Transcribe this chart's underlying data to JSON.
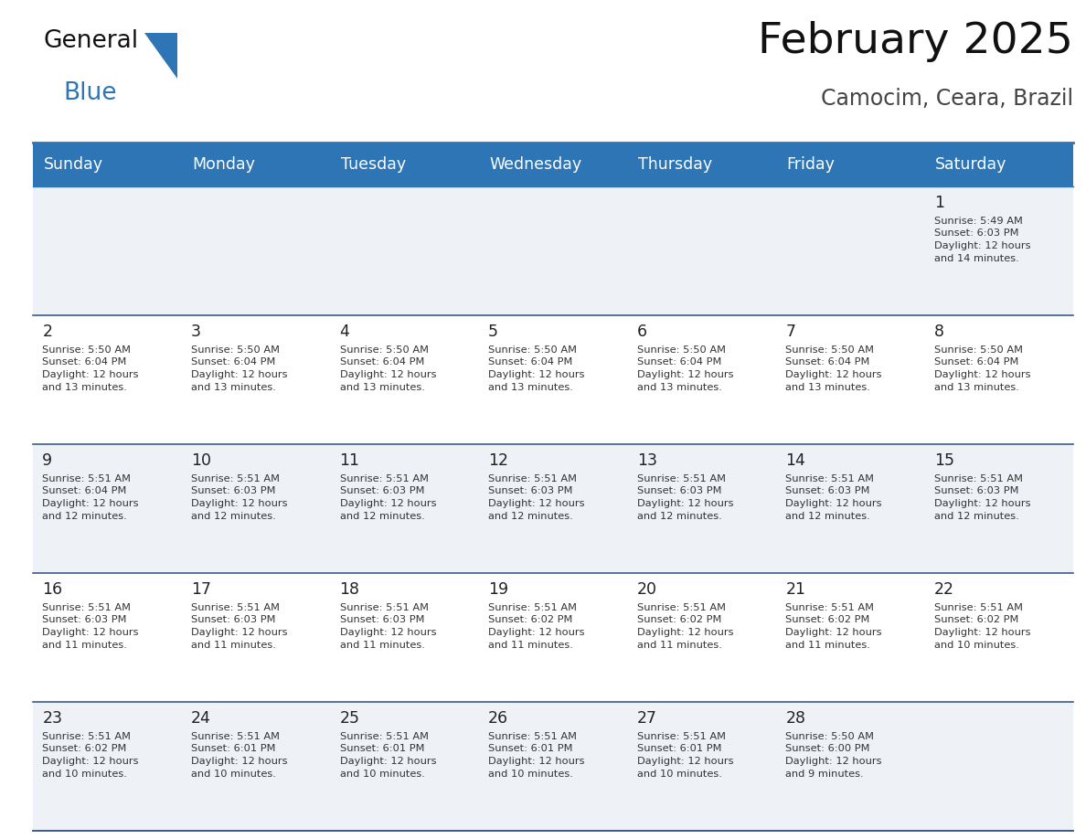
{
  "title": "February 2025",
  "subtitle": "Camocim, Ceara, Brazil",
  "header_bg": "#2E75B6",
  "header_text_color": "#FFFFFF",
  "day_names": [
    "Sunday",
    "Monday",
    "Tuesday",
    "Wednesday",
    "Thursday",
    "Friday",
    "Saturday"
  ],
  "alt_row_bg": "#EEF2F7",
  "white_bg": "#FFFFFF",
  "separator_color": "#2E75B6",
  "row_border_color": "#3A5A8C",
  "day_num_color": "#222222",
  "cell_text_color": "#333333",
  "title_color": "#111111",
  "subtitle_color": "#444444",
  "logo_general_color": "#111111",
  "logo_blue_color": "#2E75B6",
  "weeks": [
    [
      {
        "day": null,
        "info": null
      },
      {
        "day": null,
        "info": null
      },
      {
        "day": null,
        "info": null
      },
      {
        "day": null,
        "info": null
      },
      {
        "day": null,
        "info": null
      },
      {
        "day": null,
        "info": null
      },
      {
        "day": 1,
        "info": "Sunrise: 5:49 AM\nSunset: 6:03 PM\nDaylight: 12 hours\nand 14 minutes."
      }
    ],
    [
      {
        "day": 2,
        "info": "Sunrise: 5:50 AM\nSunset: 6:04 PM\nDaylight: 12 hours\nand 13 minutes."
      },
      {
        "day": 3,
        "info": "Sunrise: 5:50 AM\nSunset: 6:04 PM\nDaylight: 12 hours\nand 13 minutes."
      },
      {
        "day": 4,
        "info": "Sunrise: 5:50 AM\nSunset: 6:04 PM\nDaylight: 12 hours\nand 13 minutes."
      },
      {
        "day": 5,
        "info": "Sunrise: 5:50 AM\nSunset: 6:04 PM\nDaylight: 12 hours\nand 13 minutes."
      },
      {
        "day": 6,
        "info": "Sunrise: 5:50 AM\nSunset: 6:04 PM\nDaylight: 12 hours\nand 13 minutes."
      },
      {
        "day": 7,
        "info": "Sunrise: 5:50 AM\nSunset: 6:04 PM\nDaylight: 12 hours\nand 13 minutes."
      },
      {
        "day": 8,
        "info": "Sunrise: 5:50 AM\nSunset: 6:04 PM\nDaylight: 12 hours\nand 13 minutes."
      }
    ],
    [
      {
        "day": 9,
        "info": "Sunrise: 5:51 AM\nSunset: 6:04 PM\nDaylight: 12 hours\nand 12 minutes."
      },
      {
        "day": 10,
        "info": "Sunrise: 5:51 AM\nSunset: 6:03 PM\nDaylight: 12 hours\nand 12 minutes."
      },
      {
        "day": 11,
        "info": "Sunrise: 5:51 AM\nSunset: 6:03 PM\nDaylight: 12 hours\nand 12 minutes."
      },
      {
        "day": 12,
        "info": "Sunrise: 5:51 AM\nSunset: 6:03 PM\nDaylight: 12 hours\nand 12 minutes."
      },
      {
        "day": 13,
        "info": "Sunrise: 5:51 AM\nSunset: 6:03 PM\nDaylight: 12 hours\nand 12 minutes."
      },
      {
        "day": 14,
        "info": "Sunrise: 5:51 AM\nSunset: 6:03 PM\nDaylight: 12 hours\nand 12 minutes."
      },
      {
        "day": 15,
        "info": "Sunrise: 5:51 AM\nSunset: 6:03 PM\nDaylight: 12 hours\nand 12 minutes."
      }
    ],
    [
      {
        "day": 16,
        "info": "Sunrise: 5:51 AM\nSunset: 6:03 PM\nDaylight: 12 hours\nand 11 minutes."
      },
      {
        "day": 17,
        "info": "Sunrise: 5:51 AM\nSunset: 6:03 PM\nDaylight: 12 hours\nand 11 minutes."
      },
      {
        "day": 18,
        "info": "Sunrise: 5:51 AM\nSunset: 6:03 PM\nDaylight: 12 hours\nand 11 minutes."
      },
      {
        "day": 19,
        "info": "Sunrise: 5:51 AM\nSunset: 6:02 PM\nDaylight: 12 hours\nand 11 minutes."
      },
      {
        "day": 20,
        "info": "Sunrise: 5:51 AM\nSunset: 6:02 PM\nDaylight: 12 hours\nand 11 minutes."
      },
      {
        "day": 21,
        "info": "Sunrise: 5:51 AM\nSunset: 6:02 PM\nDaylight: 12 hours\nand 11 minutes."
      },
      {
        "day": 22,
        "info": "Sunrise: 5:51 AM\nSunset: 6:02 PM\nDaylight: 12 hours\nand 10 minutes."
      }
    ],
    [
      {
        "day": 23,
        "info": "Sunrise: 5:51 AM\nSunset: 6:02 PM\nDaylight: 12 hours\nand 10 minutes."
      },
      {
        "day": 24,
        "info": "Sunrise: 5:51 AM\nSunset: 6:01 PM\nDaylight: 12 hours\nand 10 minutes."
      },
      {
        "day": 25,
        "info": "Sunrise: 5:51 AM\nSunset: 6:01 PM\nDaylight: 12 hours\nand 10 minutes."
      },
      {
        "day": 26,
        "info": "Sunrise: 5:51 AM\nSunset: 6:01 PM\nDaylight: 12 hours\nand 10 minutes."
      },
      {
        "day": 27,
        "info": "Sunrise: 5:51 AM\nSunset: 6:01 PM\nDaylight: 12 hours\nand 10 minutes."
      },
      {
        "day": 28,
        "info": "Sunrise: 5:50 AM\nSunset: 6:00 PM\nDaylight: 12 hours\nand 9 minutes."
      },
      {
        "day": null,
        "info": null
      }
    ]
  ]
}
